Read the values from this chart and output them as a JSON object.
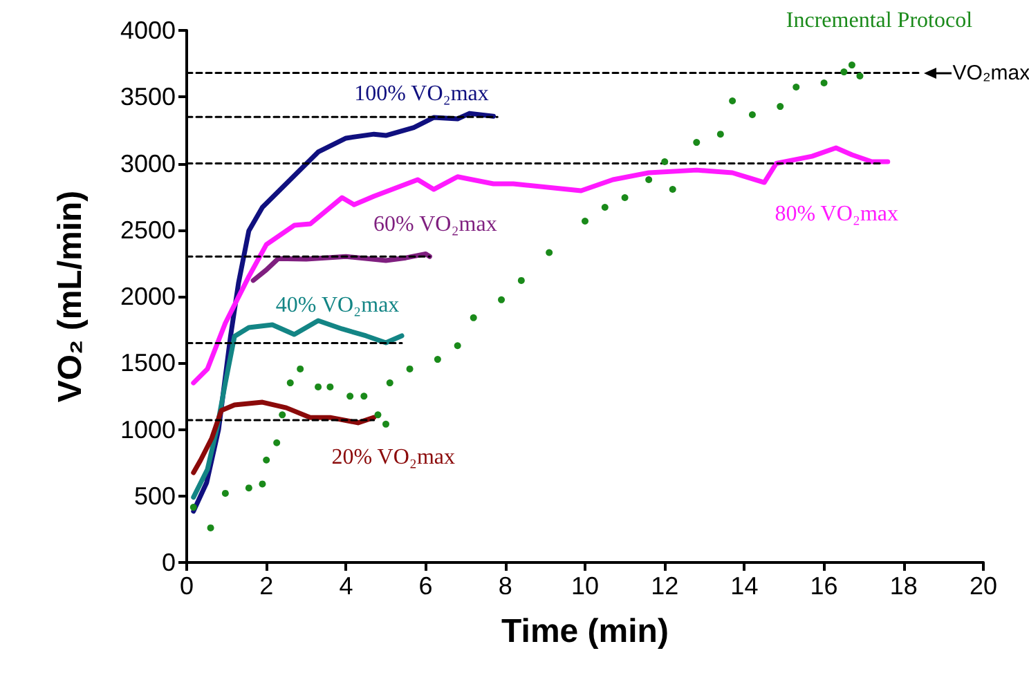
{
  "chart_data": {
    "type": "line",
    "xlabel": "Time (min)",
    "ylabel": "VO₂ (mL/min)",
    "xlim": [
      0,
      20
    ],
    "xticks": [
      0,
      2,
      4,
      6,
      8,
      10,
      12,
      14,
      16,
      18,
      20
    ],
    "ylim": [
      0,
      4000
    ],
    "yticks": [
      0,
      500,
      1000,
      1500,
      2000,
      2500,
      3000,
      3500,
      4000
    ],
    "grid": false,
    "legend": false,
    "series": [
      {
        "name": "100% VO₂max",
        "color": "#10107f",
        "x": [
          0.17,
          0.5,
          0.8,
          1.1,
          1.3,
          1.56,
          1.9,
          2.6,
          3.3,
          4.0,
          4.7,
          5.0,
          5.7,
          6.2,
          6.8,
          7.1,
          7.7
        ],
        "values": [
          385,
          600,
          1000,
          1700,
          2100,
          2494,
          2670,
          2878,
          3086,
          3190,
          3220,
          3210,
          3270,
          3345,
          3335,
          3376,
          3355
        ]
      },
      {
        "name": "60% VO₂max",
        "color": "#7f1f7f",
        "x": [
          1.67,
          2.0,
          2.3,
          3.0,
          4.0,
          5.0,
          5.5,
          6.0,
          6.1
        ],
        "values": [
          2120,
          2200,
          2285,
          2280,
          2300,
          2270,
          2290,
          2320,
          2300
        ]
      },
      {
        "name": "40% VO₂max",
        "color": "#138585",
        "x": [
          0.17,
          0.52,
          0.76,
          0.97,
          1.2,
          1.56,
          2.15,
          2.7,
          3.3,
          3.9,
          4.5,
          5.0,
          5.4
        ],
        "values": [
          490,
          700,
          1010,
          1350,
          1700,
          1766,
          1787,
          1714,
          1818,
          1756,
          1704,
          1652,
          1704
        ]
      },
      {
        "name": "20% VO₂max",
        "color": "#8b0a0a",
        "x": [
          0.17,
          0.35,
          0.63,
          0.87,
          1.2,
          1.9,
          2.5,
          3.1,
          3.6,
          4.3,
          4.7
        ],
        "values": [
          675,
          770,
          935,
          1143,
          1184,
          1205,
          1163,
          1090,
          1090,
          1050,
          1090
        ]
      },
      {
        "name": "80% VO₂max",
        "color": "#ff1aff",
        "x": [
          0.17,
          0.52,
          0.97,
          1.56,
          2.0,
          2.7,
          3.1,
          3.9,
          4.2,
          4.7,
          5.8,
          6.2,
          6.8,
          7.7,
          8.2,
          9.9,
          10.7,
          11.6,
          12.8,
          13.7,
          14.5,
          14.8,
          15.7,
          16.3,
          16.7,
          17.2,
          17.6
        ],
        "values": [
          1350,
          1455,
          1800,
          2150,
          2390,
          2535,
          2545,
          2743,
          2690,
          2753,
          2878,
          2805,
          2900,
          2847,
          2847,
          2795,
          2878,
          2930,
          2950,
          2930,
          2857,
          3000,
          3054,
          3117,
          3065,
          3013,
          3013
        ]
      },
      {
        "name": "Incremental Protocol",
        "type": "scatter",
        "marker": "circle",
        "color": "#1a8a1a",
        "x": [
          0.17,
          0.6,
          0.97,
          1.56,
          1.9,
          2.0,
          2.26,
          2.4,
          2.6,
          2.85,
          3.3,
          3.6,
          4.1,
          4.45,
          4.8,
          5.0,
          5.1,
          5.6,
          6.3,
          6.8,
          7.2,
          7.9,
          8.4,
          9.1,
          10.0,
          10.5,
          11.0,
          11.6,
          12.0,
          12.2,
          12.8,
          13.4,
          13.7,
          14.2,
          14.9,
          15.3,
          16.0,
          16.5,
          16.7,
          16.9
        ],
        "values": [
          415,
          260,
          520,
          560,
          590,
          770,
          900,
          1110,
          1350,
          1455,
          1320,
          1320,
          1250,
          1250,
          1110,
          1040,
          1350,
          1455,
          1527,
          1630,
          1840,
          1975,
          2120,
          2330,
          2566,
          2670,
          2743,
          2878,
          3013,
          2805,
          3158,
          3220,
          3470,
          3366,
          3428,
          3574,
          3605,
          3688,
          3740,
          3657
        ]
      },
      {
        "color": "#000000",
        "line_style": "dashed",
        "x": [
          0,
          18.4
        ],
        "values": [
          3680,
          3680
        ]
      },
      {
        "color": "#000000",
        "line_style": "dashed",
        "x": [
          0,
          7.8
        ],
        "values": [
          3350,
          3350
        ]
      },
      {
        "color": "#000000",
        "line_style": "dashed",
        "x": [
          0,
          17.5
        ],
        "values": [
          3000,
          3000
        ]
      },
      {
        "color": "#000000",
        "line_style": "dashed",
        "x": [
          0,
          6.1
        ],
        "values": [
          2300,
          2300
        ]
      },
      {
        "color": "#000000",
        "line_style": "dashed",
        "x": [
          0,
          5.4
        ],
        "values": [
          1650,
          1650
        ]
      },
      {
        "color": "#000000",
        "line_style": "dashed",
        "x": [
          0,
          4.7
        ],
        "values": [
          1070,
          1070
        ]
      }
    ],
    "annotations": [
      {
        "text": "VO₂max",
        "x": 18.5,
        "y": 3680
      }
    ]
  }
}
